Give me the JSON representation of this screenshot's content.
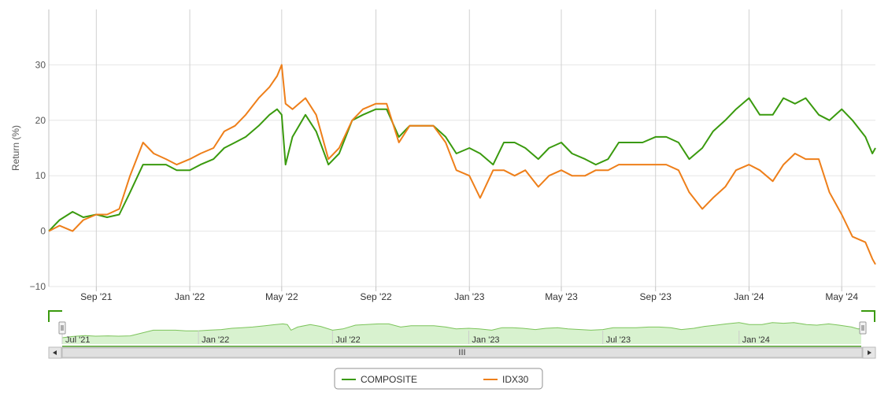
{
  "chart_data": {
    "type": "line",
    "title": "",
    "xlabel": "",
    "ylabel": "Return (%)",
    "ylim": [
      -10,
      40
    ],
    "yticks": [
      -10,
      0,
      10,
      20,
      30
    ],
    "ytick_labels": [
      "−10",
      "0",
      "10",
      "20",
      "30"
    ],
    "xticks": [
      "Sep '21",
      "Jan '22",
      "May '22",
      "Sep '22",
      "Jan '23",
      "May '23",
      "Sep '23",
      "Jan '24",
      "May '24"
    ],
    "navigator_labels": [
      "Jul '21",
      "Jan '22",
      "Jul '22",
      "Jan '23",
      "Jul '23",
      "Jan '24"
    ],
    "navigator_scrollbar_label": "III",
    "grid": true,
    "legend_position": "bottom-center",
    "series": [
      {
        "name": "COMPOSITE",
        "color": "#3a9a0e",
        "points": [
          [
            "2021-07-01",
            0
          ],
          [
            "2021-07-15",
            2
          ],
          [
            "2021-08-01",
            3.5
          ],
          [
            "2021-08-15",
            2.5
          ],
          [
            "2021-09-01",
            3
          ],
          [
            "2021-09-15",
            2.5
          ],
          [
            "2021-10-01",
            3
          ],
          [
            "2021-10-15",
            7
          ],
          [
            "2021-11-01",
            12
          ],
          [
            "2021-11-15",
            12
          ],
          [
            "2021-12-01",
            12
          ],
          [
            "2021-12-15",
            11
          ],
          [
            "2022-01-01",
            11
          ],
          [
            "2022-01-15",
            12
          ],
          [
            "2022-02-01",
            13
          ],
          [
            "2022-02-15",
            15
          ],
          [
            "2022-03-01",
            16
          ],
          [
            "2022-03-15",
            17
          ],
          [
            "2022-04-01",
            19
          ],
          [
            "2022-04-15",
            21
          ],
          [
            "2022-04-25",
            22
          ],
          [
            "2022-05-01",
            21
          ],
          [
            "2022-05-06",
            12
          ],
          [
            "2022-05-15",
            17
          ],
          [
            "2022-06-01",
            21
          ],
          [
            "2022-06-15",
            18
          ],
          [
            "2022-07-01",
            12
          ],
          [
            "2022-07-15",
            14
          ],
          [
            "2022-08-01",
            20
          ],
          [
            "2022-08-15",
            21
          ],
          [
            "2022-09-01",
            22
          ],
          [
            "2022-09-15",
            22
          ],
          [
            "2022-10-01",
            17
          ],
          [
            "2022-10-15",
            19
          ],
          [
            "2022-11-01",
            19
          ],
          [
            "2022-11-15",
            19
          ],
          [
            "2022-12-01",
            17
          ],
          [
            "2022-12-15",
            14
          ],
          [
            "2023-01-01",
            15
          ],
          [
            "2023-01-15",
            14
          ],
          [
            "2023-02-01",
            12
          ],
          [
            "2023-02-15",
            16
          ],
          [
            "2023-03-01",
            16
          ],
          [
            "2023-03-15",
            15
          ],
          [
            "2023-04-01",
            13
          ],
          [
            "2023-04-15",
            15
          ],
          [
            "2023-05-01",
            16
          ],
          [
            "2023-05-15",
            14
          ],
          [
            "2023-06-01",
            13
          ],
          [
            "2023-06-15",
            12
          ],
          [
            "2023-07-01",
            13
          ],
          [
            "2023-07-15",
            16
          ],
          [
            "2023-08-01",
            16
          ],
          [
            "2023-08-15",
            16
          ],
          [
            "2023-09-01",
            17
          ],
          [
            "2023-09-15",
            17
          ],
          [
            "2023-10-01",
            16
          ],
          [
            "2023-10-15",
            13
          ],
          [
            "2023-11-01",
            15
          ],
          [
            "2023-11-15",
            18
          ],
          [
            "2023-12-01",
            20
          ],
          [
            "2023-12-15",
            22
          ],
          [
            "2024-01-01",
            24
          ],
          [
            "2024-01-15",
            21
          ],
          [
            "2024-02-01",
            21
          ],
          [
            "2024-02-15",
            24
          ],
          [
            "2024-03-01",
            23
          ],
          [
            "2024-03-15",
            24
          ],
          [
            "2024-04-01",
            21
          ],
          [
            "2024-04-15",
            20
          ],
          [
            "2024-05-01",
            22
          ],
          [
            "2024-05-15",
            20
          ],
          [
            "2024-06-01",
            17
          ],
          [
            "2024-06-10",
            14
          ],
          [
            "2024-06-14",
            15
          ]
        ]
      },
      {
        "name": "IDX30",
        "color": "#ee7f1a",
        "points": [
          [
            "2021-07-01",
            0
          ],
          [
            "2021-07-15",
            1
          ],
          [
            "2021-08-01",
            0
          ],
          [
            "2021-08-15",
            2
          ],
          [
            "2021-09-01",
            3
          ],
          [
            "2021-09-15",
            3
          ],
          [
            "2021-10-01",
            4
          ],
          [
            "2021-10-15",
            10
          ],
          [
            "2021-11-01",
            16
          ],
          [
            "2021-11-15",
            14
          ],
          [
            "2021-12-01",
            13
          ],
          [
            "2021-12-15",
            12
          ],
          [
            "2022-01-01",
            13
          ],
          [
            "2022-01-15",
            14
          ],
          [
            "2022-02-01",
            15
          ],
          [
            "2022-02-15",
            18
          ],
          [
            "2022-03-01",
            19
          ],
          [
            "2022-03-15",
            21
          ],
          [
            "2022-04-01",
            24
          ],
          [
            "2022-04-15",
            26
          ],
          [
            "2022-04-25",
            28
          ],
          [
            "2022-05-01",
            30
          ],
          [
            "2022-05-06",
            23
          ],
          [
            "2022-05-15",
            22
          ],
          [
            "2022-06-01",
            24
          ],
          [
            "2022-06-15",
            21
          ],
          [
            "2022-07-01",
            13
          ],
          [
            "2022-07-15",
            15
          ],
          [
            "2022-08-01",
            20
          ],
          [
            "2022-08-15",
            22
          ],
          [
            "2022-09-01",
            23
          ],
          [
            "2022-09-15",
            23
          ],
          [
            "2022-10-01",
            16
          ],
          [
            "2022-10-15",
            19
          ],
          [
            "2022-11-01",
            19
          ],
          [
            "2022-11-15",
            19
          ],
          [
            "2022-12-01",
            16
          ],
          [
            "2022-12-15",
            11
          ],
          [
            "2023-01-01",
            10
          ],
          [
            "2023-01-15",
            6
          ],
          [
            "2023-02-01",
            11
          ],
          [
            "2023-02-15",
            11
          ],
          [
            "2023-03-01",
            10
          ],
          [
            "2023-03-15",
            11
          ],
          [
            "2023-04-01",
            8
          ],
          [
            "2023-04-15",
            10
          ],
          [
            "2023-05-01",
            11
          ],
          [
            "2023-05-15",
            10
          ],
          [
            "2023-06-01",
            10
          ],
          [
            "2023-06-15",
            11
          ],
          [
            "2023-07-01",
            11
          ],
          [
            "2023-07-15",
            12
          ],
          [
            "2023-08-01",
            12
          ],
          [
            "2023-08-15",
            12
          ],
          [
            "2023-09-01",
            12
          ],
          [
            "2023-09-15",
            12
          ],
          [
            "2023-10-01",
            11
          ],
          [
            "2023-10-15",
            7
          ],
          [
            "2023-11-01",
            4
          ],
          [
            "2023-11-15",
            6
          ],
          [
            "2023-12-01",
            8
          ],
          [
            "2023-12-15",
            11
          ],
          [
            "2024-01-01",
            12
          ],
          [
            "2024-01-15",
            11
          ],
          [
            "2024-02-01",
            9
          ],
          [
            "2024-02-15",
            12
          ],
          [
            "2024-03-01",
            14
          ],
          [
            "2024-03-15",
            13
          ],
          [
            "2024-04-01",
            13
          ],
          [
            "2024-04-15",
            7
          ],
          [
            "2024-05-01",
            3
          ],
          [
            "2024-05-15",
            -1
          ],
          [
            "2024-06-01",
            -2
          ],
          [
            "2024-06-10",
            -5
          ],
          [
            "2024-06-14",
            -6
          ]
        ]
      }
    ]
  }
}
